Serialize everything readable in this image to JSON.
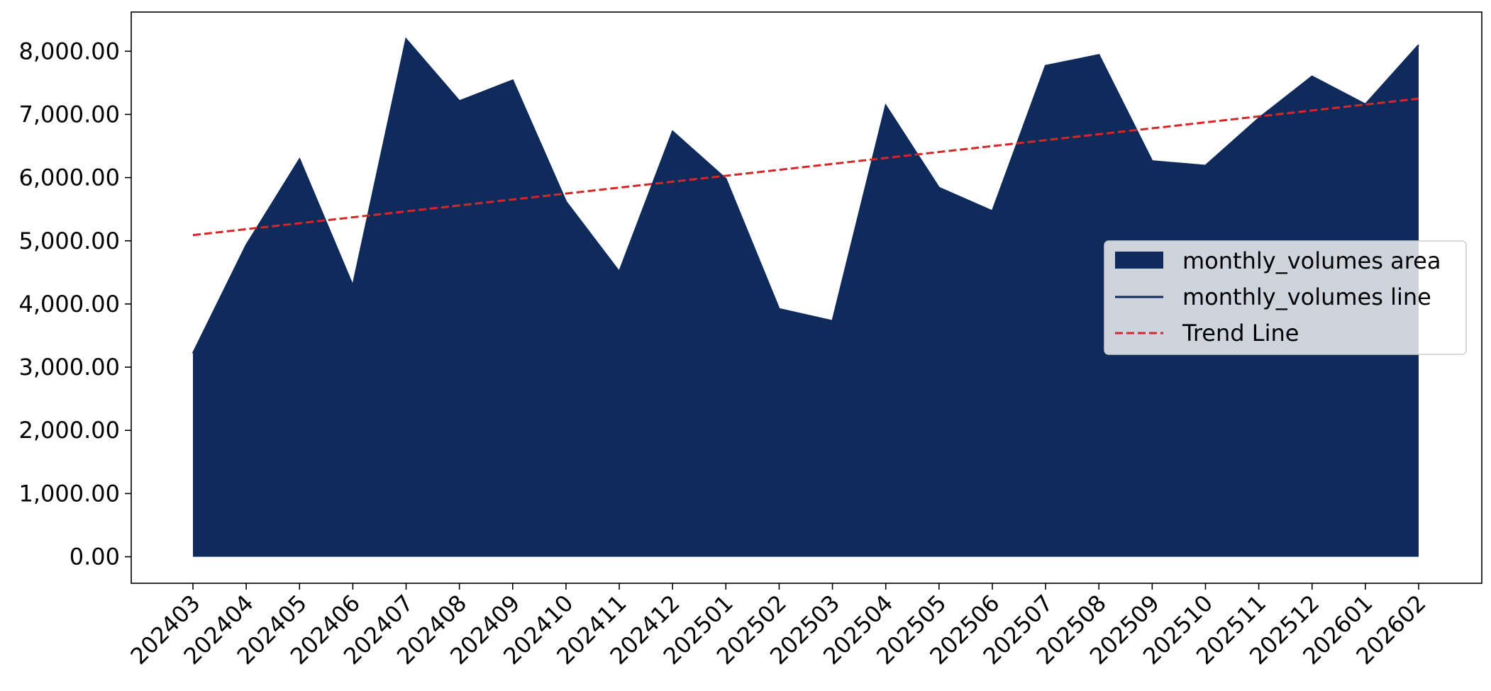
{
  "chart_data": {
    "type": "area",
    "title": "",
    "xlabel": "",
    "ylabel": "",
    "categories": [
      "202403",
      "202404",
      "202405",
      "202406",
      "202407",
      "202408",
      "202409",
      "202410",
      "202411",
      "202412",
      "202501",
      "202502",
      "202503",
      "202504",
      "202505",
      "202506",
      "202507",
      "202508",
      "202509",
      "202510",
      "202511",
      "202512",
      "202601",
      "202602"
    ],
    "series": [
      {
        "name": "monthly_volumes",
        "values": [
          3220,
          4930,
          6290,
          4290,
          8190,
          7210,
          7540,
          5620,
          4510,
          6730,
          5980,
          3920,
          3730,
          7140,
          5840,
          5470,
          7770,
          7940,
          6260,
          6190,
          6940,
          7600,
          7160,
          8100
        ],
        "color": "#0e2b5c"
      }
    ],
    "trend_line": {
      "name": "Trend Line",
      "start": 5090,
      "end": 7250,
      "color": "#d62728"
    },
    "ylim": [
      -420,
      8620
    ],
    "yticks": [
      0,
      1000,
      2000,
      3000,
      4000,
      5000,
      6000,
      7000,
      8000
    ],
    "ytick_labels": [
      "0.00",
      "1,000.00",
      "2,000.00",
      "3,000.00",
      "4,000.00",
      "5,000.00",
      "6,000.00",
      "7,000.00",
      "8,000.00"
    ],
    "grid": false,
    "legend": {
      "placement": "center-right",
      "entries": [
        {
          "label": "monthly_volumes area",
          "kind": "patch",
          "color": "#0e2b5c"
        },
        {
          "label": "monthly_volumes line",
          "kind": "line",
          "color": "#0e2b5c"
        },
        {
          "label": "Trend Line",
          "kind": "dashed",
          "color": "#d62728"
        }
      ]
    }
  }
}
